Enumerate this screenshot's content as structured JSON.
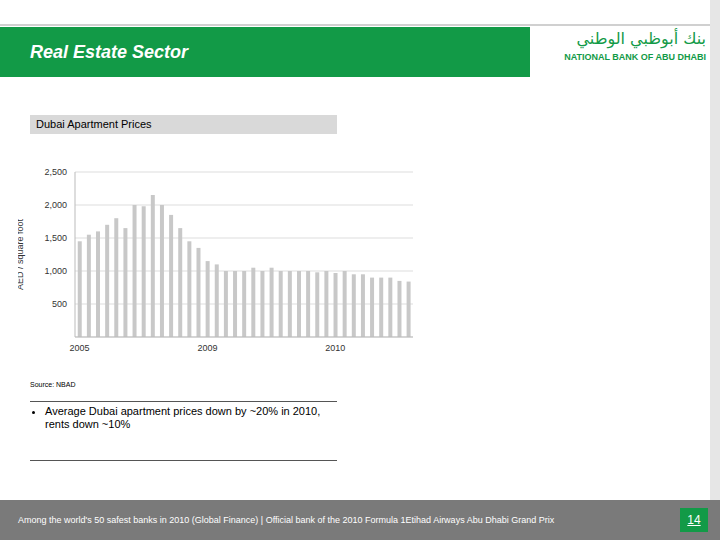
{
  "header": {
    "title": "Real Estate Sector",
    "logo_arabic": "بنك أبوظبي الوطني",
    "logo_english": "NATIONAL BANK OF ABU DHABI"
  },
  "chart_data": {
    "type": "bar",
    "title": "Dubai Apartment Prices",
    "y_label": "AED / square foot",
    "categories": [
      "2005",
      null,
      null,
      null,
      null,
      null,
      null,
      null,
      null,
      null,
      null,
      null,
      null,
      null,
      "2009",
      null,
      null,
      null,
      null,
      null,
      null,
      null,
      null,
      null,
      null,
      null,
      null,
      null,
      "2010",
      null,
      null,
      null,
      null,
      null,
      null,
      null,
      null
    ],
    "values": [
      1450,
      1550,
      1600,
      1700,
      1800,
      1650,
      2000,
      1980,
      2150,
      2000,
      1850,
      1650,
      1450,
      1350,
      1150,
      1100,
      1000,
      1000,
      1000,
      1050,
      1000,
      1050,
      1000,
      1000,
      1000,
      1000,
      980,
      1000,
      970,
      1000,
      950,
      950,
      900,
      900,
      900,
      850,
      840
    ],
    "color": "#c8c8c8",
    "ylim": [
      0,
      2500
    ],
    "yticks": [
      500,
      {
        "value": 1000,
        "label": "1,000"
      },
      {
        "value": 1500,
        "label": "1,500"
      },
      {
        "value": 2000,
        "label": "2,000"
      },
      {
        "value": 2500,
        "label": "2,500"
      }
    ],
    "grid": true
  },
  "source": "Source: NBAD",
  "bullets": [
    "Average Dubai apartment prices down by ~20% in 2010, rents down ~10%"
  ],
  "footer": {
    "text": "Among the world's 50 safest banks in 2010 (Global Finance) | Official bank of the 2010 Formula 1Etihad Airways Abu Dhabi Grand Prix",
    "page": 14
  }
}
